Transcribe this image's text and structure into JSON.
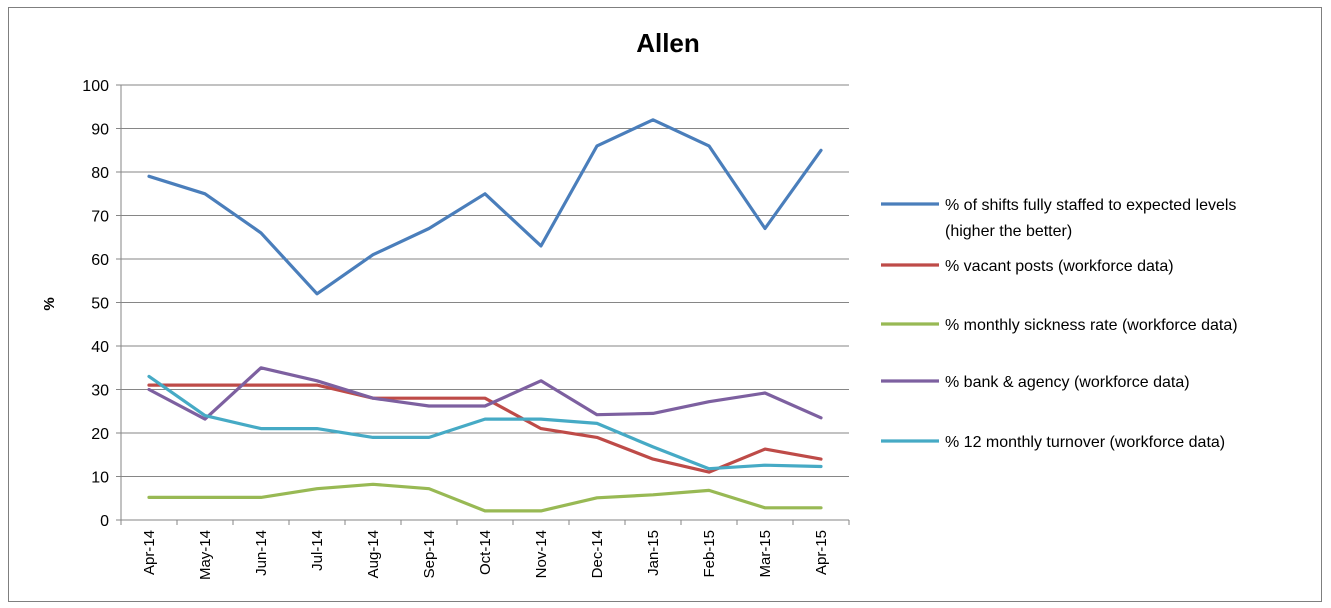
{
  "chart_data": {
    "type": "line",
    "title": "Allen",
    "xlabel": "",
    "ylabel": "%",
    "ylim": [
      0,
      100
    ],
    "yticks": [
      0,
      10,
      20,
      30,
      40,
      50,
      60,
      70,
      80,
      90,
      100
    ],
    "grid": true,
    "legend_position": "right",
    "categories": [
      "Apr-14",
      "May-14",
      "Jun-14",
      "Jul-14",
      "Aug-14",
      "Sep-14",
      "Oct-14",
      "Nov-14",
      "Dec-14",
      "Jan-15",
      "Feb-15",
      "Mar-15",
      "Apr-15"
    ],
    "series": [
      {
        "name": "% of shifts fully staffed to expected levels (higher the better)",
        "legend_lines": [
          "% of shifts fully staffed to expected levels",
          "(higher the better)"
        ],
        "color": "#4a7ebb",
        "values": [
          79,
          75,
          66,
          52,
          61,
          67,
          75,
          63,
          86,
          92,
          86,
          67,
          85
        ]
      },
      {
        "name": "% vacant posts (workforce data)",
        "legend_lines": [
          "% vacant posts (workforce data)"
        ],
        "color": "#be4b48",
        "values": [
          31,
          31,
          31,
          31,
          28,
          28,
          28,
          21,
          19,
          14,
          11,
          16.3,
          14
        ]
      },
      {
        "name": "% monthly sickness rate (workforce data)",
        "legend_lines": [
          "% monthly sickness rate (workforce data)"
        ],
        "color": "#98b954",
        "values": [
          5.2,
          5.2,
          5.2,
          7.2,
          8.2,
          7.2,
          2.1,
          2.1,
          5.1,
          5.8,
          6.8,
          2.8,
          2.8
        ]
      },
      {
        "name": "% bank & agency (workforce data)",
        "legend_lines": [
          " % bank & agency (workforce data)"
        ],
        "color": "#7d60a0",
        "values": [
          30,
          23.2,
          35,
          32,
          28,
          26.2,
          26.2,
          32,
          24.2,
          24.5,
          27.2,
          29.2,
          23.5
        ]
      },
      {
        "name": "% 12 monthly turnover (workforce data)",
        "legend_lines": [
          "% 12 monthly turnover (workforce data)"
        ],
        "color": "#46aac5",
        "values": [
          33,
          24,
          21,
          21,
          19,
          19,
          23.2,
          23.2,
          22.2,
          16.8,
          11.8,
          12.6,
          12.3
        ]
      }
    ]
  }
}
